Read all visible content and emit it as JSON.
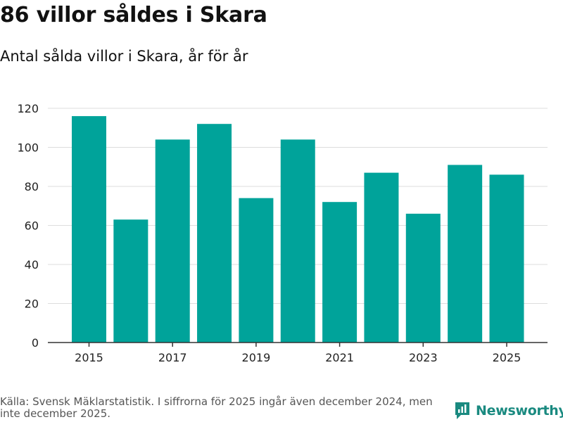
{
  "title": "86 villor såldes i Skara",
  "subtitle": "Antal sålda villor i Skara, år för år",
  "footer": "Källa: Svensk Mäklarstatistik. I siffrorna för 2025 ingår även december 2024, men inte december 2025.",
  "brand": {
    "name": "Newsworthy",
    "color": "#1a8a80"
  },
  "bar_color": "#00a39a",
  "chart_data": {
    "type": "bar",
    "title": "Antal sålda villor i Skara, år för år",
    "xlabel": "",
    "ylabel": "",
    "categories": [
      "2015",
      "2016",
      "2017",
      "2018",
      "2019",
      "2020",
      "2021",
      "2022",
      "2023",
      "2024",
      "2025"
    ],
    "values": [
      116,
      63,
      104,
      112,
      74,
      104,
      72,
      87,
      66,
      91,
      86
    ],
    "x_tick_labels": [
      "2015",
      "2017",
      "2019",
      "2021",
      "2023",
      "2025"
    ],
    "y_ticks": [
      0,
      20,
      40,
      60,
      80,
      100,
      120
    ],
    "ylim": [
      0,
      120
    ],
    "grid": true
  }
}
